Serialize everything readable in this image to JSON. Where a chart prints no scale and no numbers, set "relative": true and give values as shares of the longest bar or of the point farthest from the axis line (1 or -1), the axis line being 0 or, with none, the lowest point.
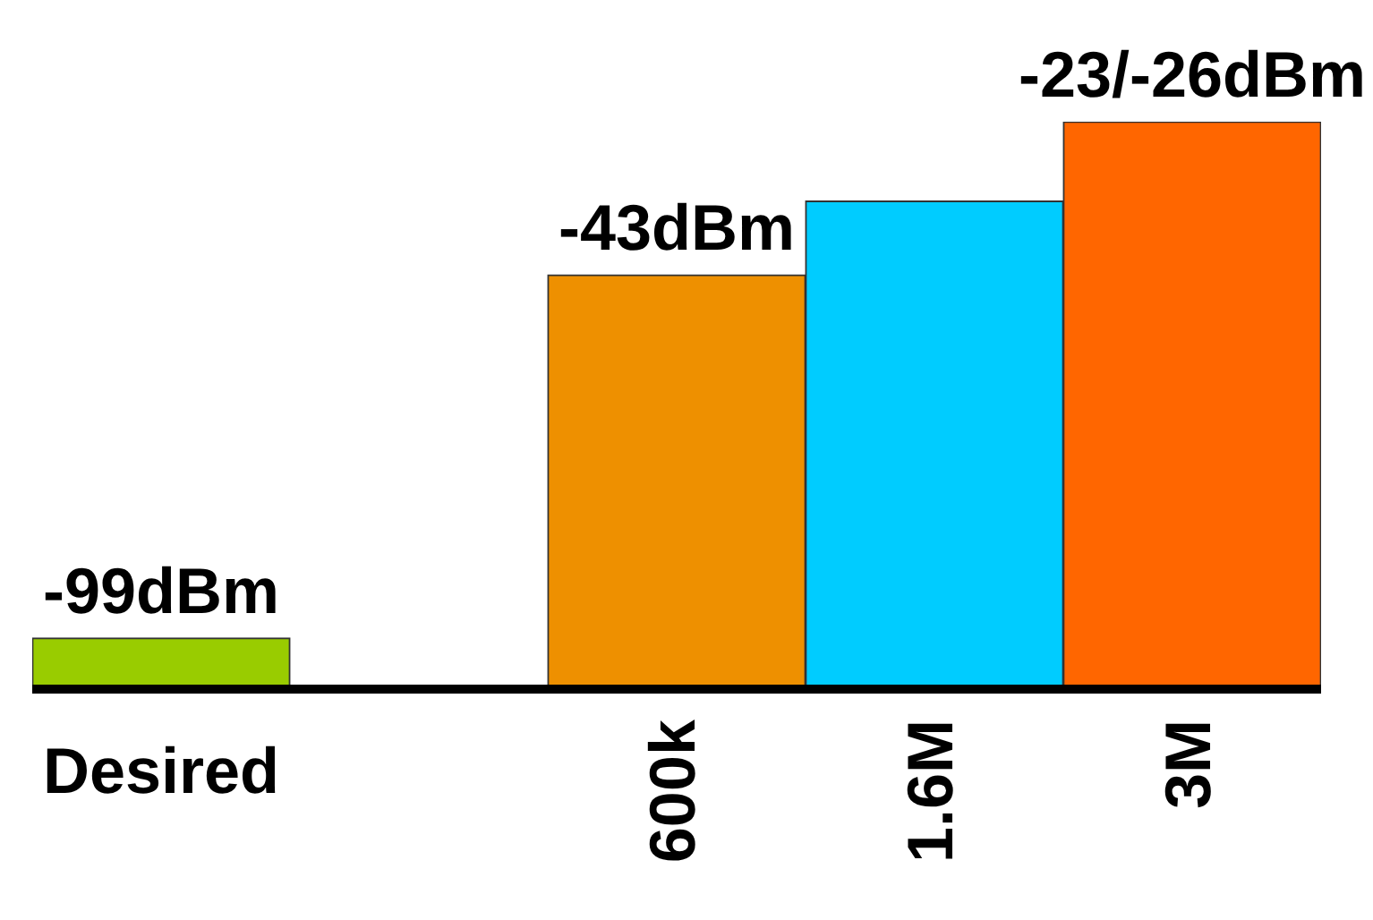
{
  "chart_data": {
    "type": "bar",
    "relative": true,
    "categories": [
      "Desired",
      null,
      "600k",
      "1.6M",
      "3M"
    ],
    "values": [
      0.09,
      null,
      0.73,
      0.86,
      1
    ],
    "colors": [
      "#99cc00",
      "#ffffff",
      "#ee9000",
      "#00ccff",
      "#ff6600"
    ],
    "annotations": [
      {
        "text": "-99dBm",
        "x": "Desired",
        "y": 0.09
      },
      {
        "text": "-43dBm",
        "x": "600k",
        "y": 0.73
      },
      {
        "text": "-23/-26dBm",
        "x": "3M",
        "y": 1
      }
    ],
    "legend": false
  }
}
